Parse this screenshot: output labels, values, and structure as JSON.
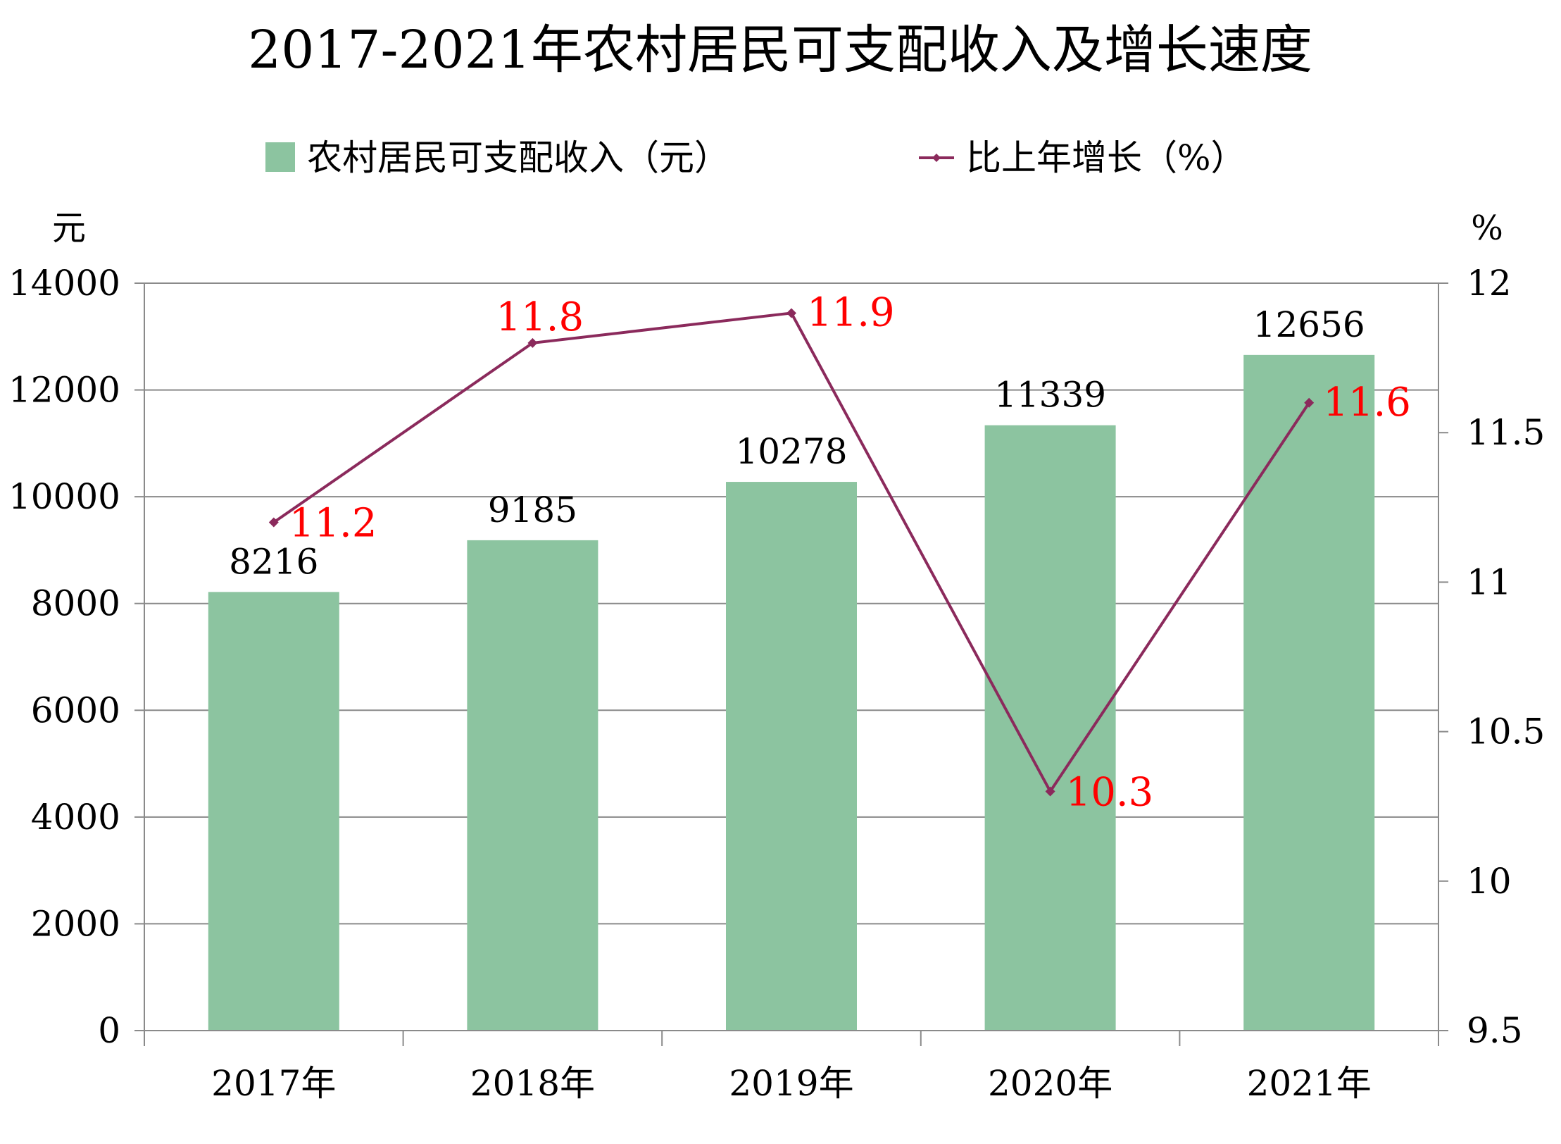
{
  "chart_data": {
    "type": "bar",
    "title": "2017-2021年农村居民可支配收入及增长速度",
    "categories": [
      "2017年",
      "2018年",
      "2019年",
      "2020年",
      "2021年"
    ],
    "series": [
      {
        "name": "农村居民可支配收入（元）",
        "type": "bar",
        "axis": "left",
        "color": "#8cc4a0",
        "values": [
          8216,
          9185,
          10278,
          11339,
          12656
        ]
      },
      {
        "name": "比上年增长（%）",
        "type": "line",
        "axis": "right",
        "color": "#8b2a5c",
        "values": [
          11.2,
          11.8,
          11.9,
          10.3,
          11.6
        ]
      }
    ],
    "y_left": {
      "unit": "元",
      "min": 0,
      "max": 14000,
      "ticks": [
        "0",
        "2000",
        "4000",
        "6000",
        "8000",
        "10000",
        "12000",
        "14000"
      ]
    },
    "y_right": {
      "unit": "%",
      "min": 9.5,
      "max": 12,
      "ticks": [
        "9.5",
        "10",
        "10.5",
        "11",
        "11.5",
        "12"
      ]
    },
    "bar_labels": [
      "8216",
      "9185",
      "10278",
      "11339",
      "12656"
    ],
    "line_labels": [
      "11.2",
      "11.8",
      "11.9",
      "10.3",
      "11.6"
    ],
    "line_label_color": "#ff0000",
    "grid": true,
    "legend_position": "top"
  }
}
